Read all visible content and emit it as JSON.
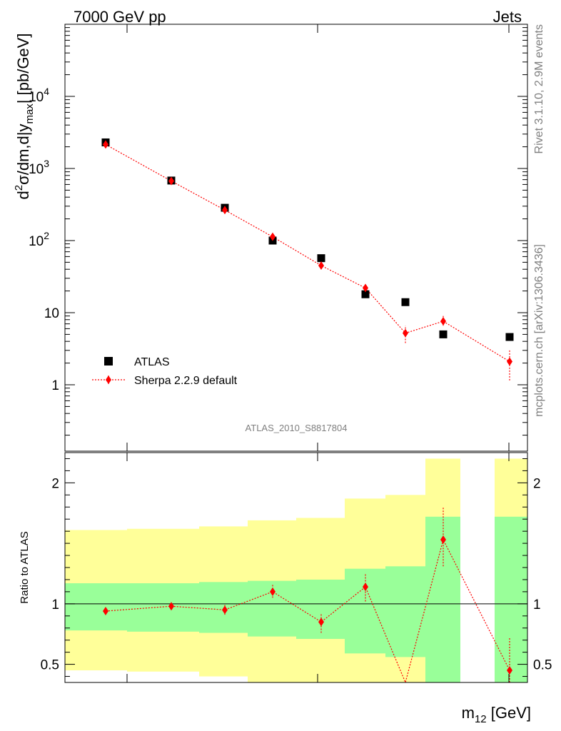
{
  "header": {
    "left": "7000 GeV pp",
    "right": "Jets"
  },
  "side_text": {
    "rivet": "Rivet 3.1.10,  2.9M events",
    "mcplots": "mcplots.cern.ch [arXiv:1306.3436]"
  },
  "analysis_id": "ATLAS_2010_S8817804",
  "colors": {
    "data": "#000000",
    "mc": "#ff0000",
    "band_inner": "#99ff99",
    "band_outer": "#ffff99"
  },
  "chart_data": [
    {
      "type": "scatter",
      "title": "",
      "ylabel": {
        "base": "d",
        "sup": "2",
        "mid": "σ/dm,d|y",
        "sub": "max",
        "end": "| [pb/GeV]"
      },
      "yscale": "log",
      "ylim": [
        0.12,
        100000
      ],
      "y_ticks": [
        {
          "value": 1,
          "label": "1"
        },
        {
          "value": 10,
          "label": "10"
        },
        {
          "value": 100,
          "label": "10",
          "sup": "2"
        },
        {
          "value": 1000,
          "label": "10",
          "sup": "3"
        },
        {
          "value": 10000,
          "label": "10",
          "sup": "4"
        }
      ],
      "legend": {
        "placement": "bottom-left",
        "entries": [
          {
            "label": "ATLAS"
          },
          {
            "label": "Sherpa 2.2.9 default"
          }
        ]
      },
      "series": [
        {
          "name": "ATLAS",
          "x": [
            1,
            2,
            3,
            4,
            5,
            6,
            7,
            8,
            9
          ],
          "values": [
            2300,
            680,
            285,
            100,
            57,
            18,
            14,
            5,
            4.6
          ]
        },
        {
          "name": "Sherpa 2.2.9 default",
          "x": [
            1,
            2,
            3,
            4,
            5,
            6,
            7,
            8,
            9
          ],
          "values": [
            2150,
            670,
            265,
            113,
            45,
            22,
            5.2,
            7.6,
            2.1
          ],
          "err_low": [
            2050,
            640,
            250,
            106,
            42,
            20,
            3.8,
            6.6,
            1.15
          ],
          "err_high": [
            2250,
            700,
            280,
            120,
            48,
            24,
            6.6,
            9.0,
            3.1
          ]
        }
      ]
    },
    {
      "type": "scatter",
      "title": "",
      "xlabel": {
        "base": "m",
        "sub": "12",
        "end": " [GeV]"
      },
      "ylabel": "Ratio to ATLAS",
      "ylim": [
        0.35,
        2.25
      ],
      "y_ticks": [
        {
          "value": 0.5,
          "label": "0.5"
        },
        {
          "value": 1,
          "label": "1"
        },
        {
          "value": 2,
          "label": "2"
        }
      ],
      "reference_line": 1,
      "bands": [
        {
          "inner": [
            0.78,
            1.17
          ],
          "outer": [
            0.45,
            1.61
          ]
        },
        {
          "inner": [
            0.77,
            1.17
          ],
          "outer": [
            0.44,
            1.62
          ]
        },
        {
          "inner": [
            0.76,
            1.18
          ],
          "outer": [
            0.4,
            1.64
          ]
        },
        {
          "inner": [
            0.73,
            1.19
          ],
          "outer": [
            0.3,
            1.69
          ]
        },
        {
          "inner": [
            0.71,
            1.2
          ],
          "outer": [
            0.3,
            1.71
          ]
        },
        {
          "inner": [
            0.59,
            1.29
          ],
          "outer": [
            0.3,
            1.87
          ]
        },
        {
          "inner": [
            0.56,
            1.31
          ],
          "outer": [
            0.3,
            1.9
          ]
        },
        {
          "inner": [
            0.3,
            1.72
          ],
          "outer": [
            0.3,
            2.2
          ]
        },
        {
          "inner": [
            0.3,
            1.72
          ],
          "outer": [
            0.3,
            2.2
          ]
        }
      ],
      "series": [
        {
          "name": "Sherpa 2.2.9 default",
          "x": [
            1,
            2,
            3,
            4,
            5,
            6,
            7,
            8,
            9
          ],
          "values": [
            0.94,
            0.98,
            0.95,
            1.1,
            0.85,
            1.14,
            0.3,
            1.53,
            0.45
          ],
          "err_low": [
            0.92,
            0.96,
            0.91,
            1.05,
            0.76,
            1.02,
            0.3,
            1.31,
            0.3
          ],
          "err_high": [
            0.96,
            1.0,
            0.99,
            1.16,
            0.92,
            1.25,
            0.3,
            1.8,
            0.72
          ]
        }
      ]
    }
  ]
}
